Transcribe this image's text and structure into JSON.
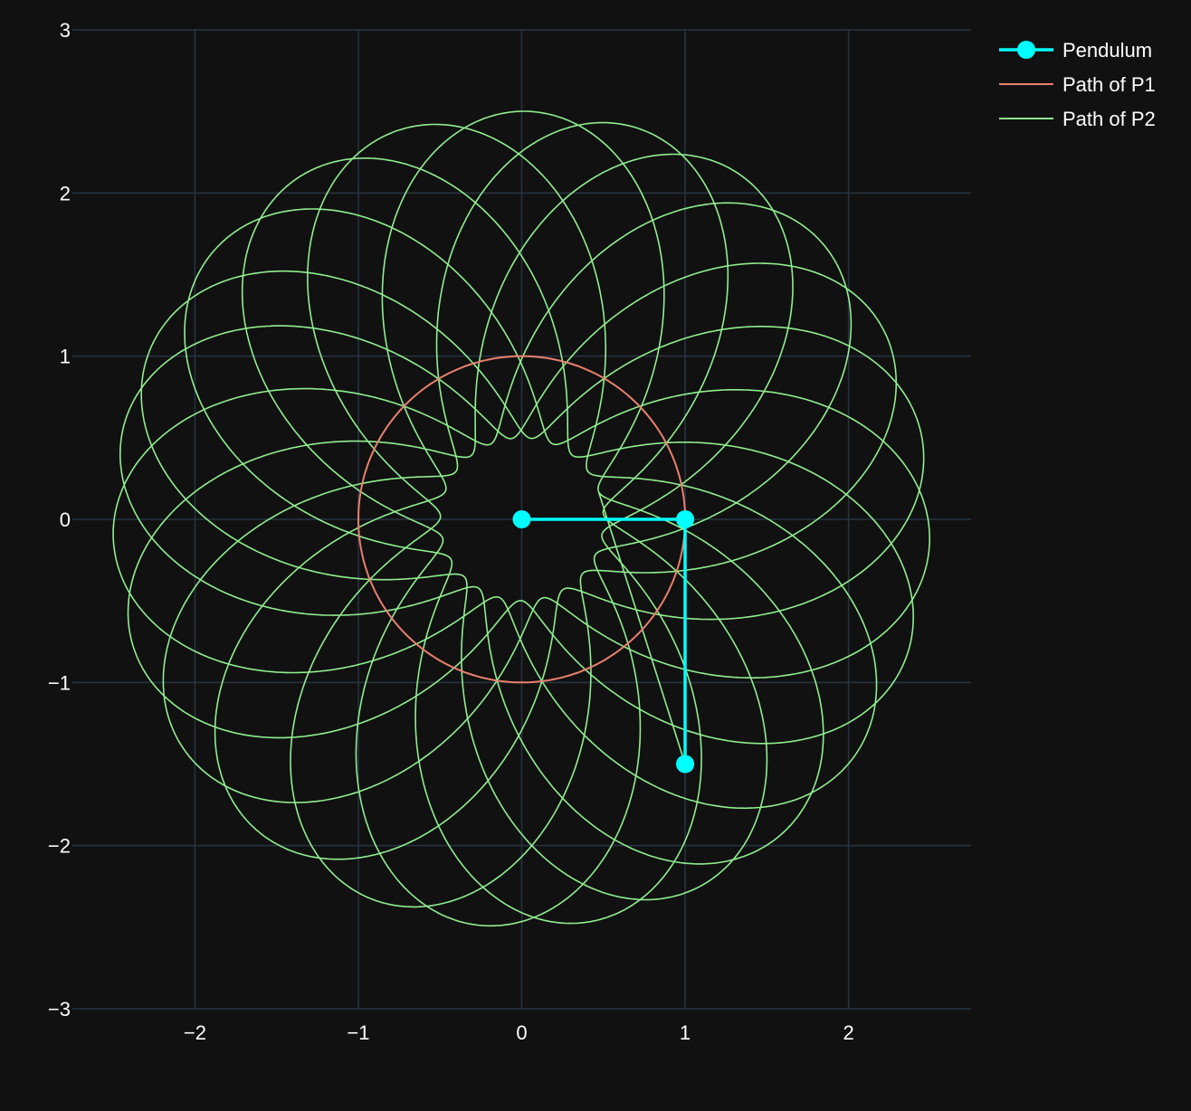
{
  "chart_data": {
    "type": "scatter",
    "title": "",
    "xlabel": "",
    "ylabel": "",
    "xlim": [
      -2.75,
      2.75
    ],
    "ylim": [
      -3,
      3
    ],
    "grid": true,
    "legend_position": "top-right",
    "x_ticks": [
      {
        "value": -2,
        "label": "−2"
      },
      {
        "value": -1,
        "label": "−1"
      },
      {
        "value": 0,
        "label": "0"
      },
      {
        "value": 1,
        "label": "1"
      },
      {
        "value": 2,
        "label": "2"
      }
    ],
    "y_ticks": [
      {
        "value": 3,
        "label": "3"
      },
      {
        "value": 2,
        "label": "2"
      },
      {
        "value": 1,
        "label": "1"
      },
      {
        "value": 0,
        "label": "0"
      },
      {
        "value": -1,
        "label": "−1"
      },
      {
        "value": -2,
        "label": "−2"
      },
      {
        "value": -3,
        "label": "−3"
      }
    ],
    "series": [
      {
        "name": "Pendulum",
        "mode": "lines+markers",
        "color": "#00ffff",
        "x": [
          0,
          1,
          1
        ],
        "y": [
          0,
          0,
          -1.5
        ]
      },
      {
        "name": "Path of P1",
        "mode": "lines",
        "color": "#e9806e",
        "shape": "circle",
        "center": [
          0,
          0
        ],
        "radius": 1
      },
      {
        "name": "Path of P2",
        "mode": "lines",
        "color": "#90ee90",
        "shape": "rosette",
        "center": [
          0,
          0
        ],
        "inner_radius": 0.5,
        "outer_radius": 2.5,
        "end_point": [
          1,
          -1.5
        ]
      }
    ]
  },
  "colors": {
    "background": "#111111",
    "grid": "#283442",
    "text": "#ffffff"
  }
}
